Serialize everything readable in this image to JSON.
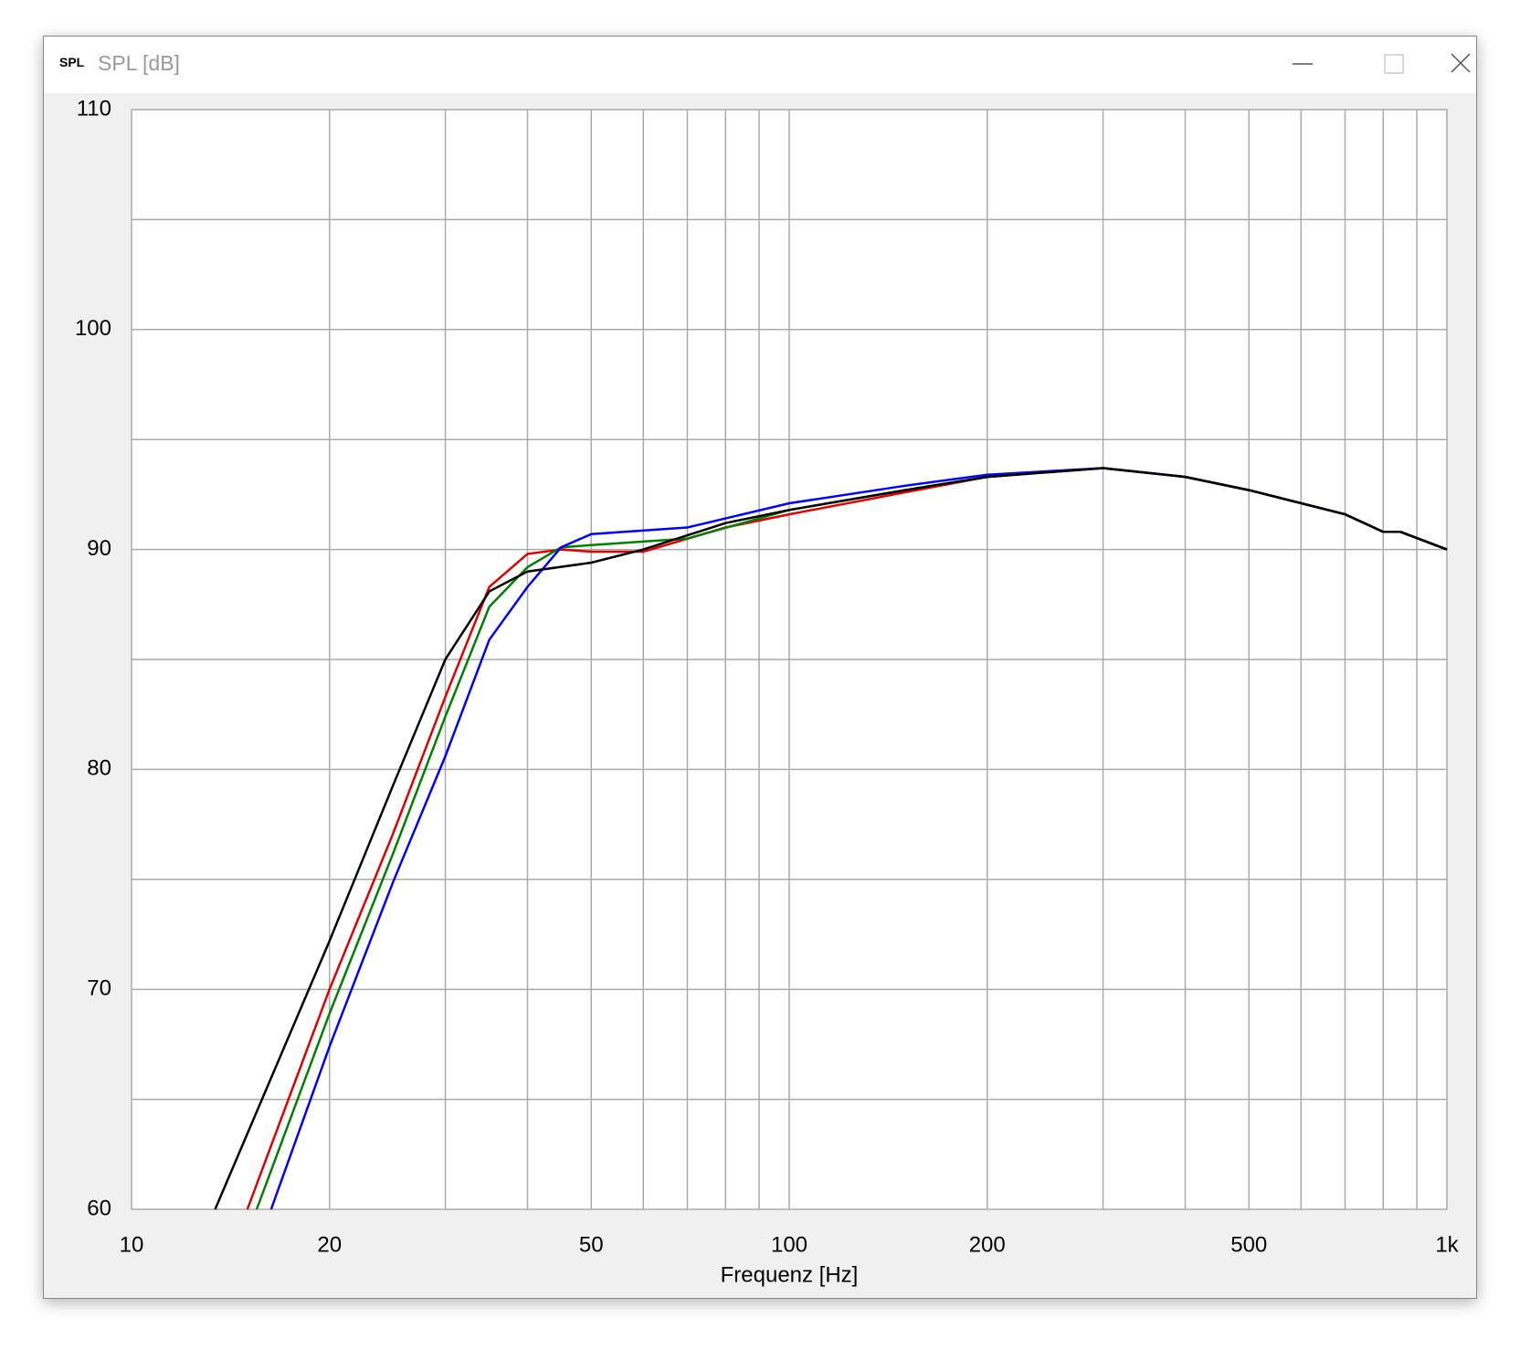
{
  "window": {
    "icon": "SPL",
    "title": "SPL [dB]"
  },
  "chart_data": {
    "type": "line",
    "xlabel": "Frequenz [Hz]",
    "xscale": "log",
    "xlim": [
      10,
      1000
    ],
    "xticks": [
      10,
      20,
      50,
      100,
      200,
      500,
      {
        "value": 1000,
        "label": "1k"
      }
    ],
    "xminor": [
      30,
      40,
      60,
      70,
      80,
      90,
      300,
      400,
      600,
      700,
      800,
      900
    ],
    "ylim": [
      60,
      110
    ],
    "yticks": [
      60,
      70,
      80,
      90,
      100,
      110
    ],
    "yminor": [
      65,
      75,
      85,
      95,
      105
    ],
    "grid": true,
    "series": [
      {
        "color": "#e00000",
        "x": [
          15,
          20,
          25,
          30,
          35,
          40,
          45,
          50,
          60,
          80,
          100,
          150,
          200,
          300,
          400,
          500,
          700,
          800,
          850,
          1000
        ],
        "values": [
          60,
          70,
          77.1,
          83.3,
          88.3,
          89.8,
          90.0,
          89.9,
          89.9,
          91.0,
          91.6,
          92.6,
          93.3,
          93.7,
          93.3,
          92.7,
          91.6,
          90.8,
          90.8,
          90.0
        ]
      },
      {
        "color": "#008000",
        "x": [
          15.5,
          20,
          25,
          30,
          35,
          40,
          45,
          50,
          70,
          100,
          150,
          200,
          300,
          400,
          500,
          700,
          800,
          850,
          1000
        ],
        "values": [
          60,
          68.9,
          76.2,
          82.4,
          87.4,
          89.2,
          90.1,
          90.2,
          90.5,
          91.8,
          92.7,
          93.3,
          93.7,
          93.3,
          92.7,
          91.6,
          90.8,
          90.8,
          90.0
        ]
      },
      {
        "color": "#0000ff",
        "x": [
          16.3,
          20,
          25,
          30,
          35,
          40,
          45,
          50,
          70,
          100,
          150,
          200,
          300,
          400,
          500,
          700,
          800,
          850,
          1000
        ],
        "values": [
          60,
          67.4,
          74.9,
          80.6,
          85.9,
          88.3,
          90.1,
          90.7,
          91.0,
          92.1,
          92.9,
          93.4,
          93.7,
          93.3,
          92.7,
          91.6,
          90.8,
          90.8,
          90.0
        ]
      },
      {
        "color": "#000000",
        "x": [
          13.4,
          20,
          25,
          30,
          35,
          40,
          50,
          60,
          80,
          100,
          150,
          200,
          300,
          400,
          500,
          700,
          800,
          850,
          1000
        ],
        "values": [
          60,
          72.2,
          79.3,
          85.0,
          88.1,
          89.0,
          89.4,
          90.0,
          91.2,
          91.8,
          92.7,
          93.3,
          93.7,
          93.3,
          92.7,
          91.6,
          90.8,
          90.8,
          90.0
        ]
      }
    ]
  }
}
